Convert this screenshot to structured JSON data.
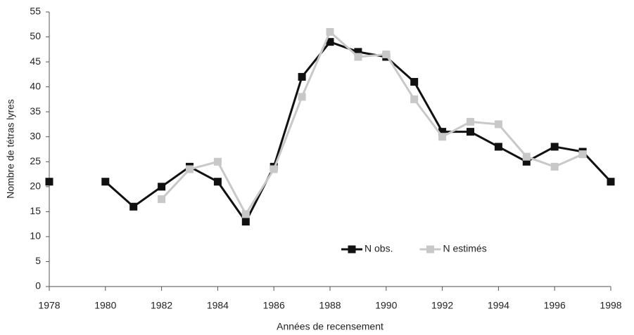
{
  "chart_data": {
    "type": "line",
    "x_label": "Années de recensement",
    "y_label": "Nombre de tétras lyres",
    "x": [
      1978,
      1979,
      1980,
      1981,
      1982,
      1983,
      1984,
      1985,
      1986,
      1987,
      1988,
      1989,
      1990,
      1991,
      1992,
      1993,
      1994,
      1995,
      1996,
      1997,
      1998
    ],
    "series": [
      {
        "name": "N obs.",
        "color": "#111111",
        "values": [
          21,
          null,
          21,
          16,
          20,
          24,
          21,
          13,
          24,
          42,
          49,
          47,
          46,
          41,
          31,
          31,
          28,
          25,
          28,
          27,
          21
        ]
      },
      {
        "name": "N estimés",
        "color": "#c8c8c8",
        "values": [
          null,
          null,
          null,
          null,
          17.5,
          23.5,
          25,
          14.5,
          23.5,
          38,
          51,
          46,
          46.5,
          37.5,
          30,
          33,
          32.5,
          26,
          24,
          26.5,
          null
        ]
      }
    ],
    "xlim": [
      1978,
      1998
    ],
    "xticks": [
      1978,
      1980,
      1982,
      1984,
      1986,
      1988,
      1990,
      1992,
      1994,
      1996,
      1998
    ],
    "ylim": [
      0,
      55
    ],
    "yticks": [
      0,
      5,
      10,
      15,
      20,
      25,
      30,
      35,
      40,
      45,
      50,
      55
    ],
    "grid": false,
    "legend": "lower right"
  }
}
